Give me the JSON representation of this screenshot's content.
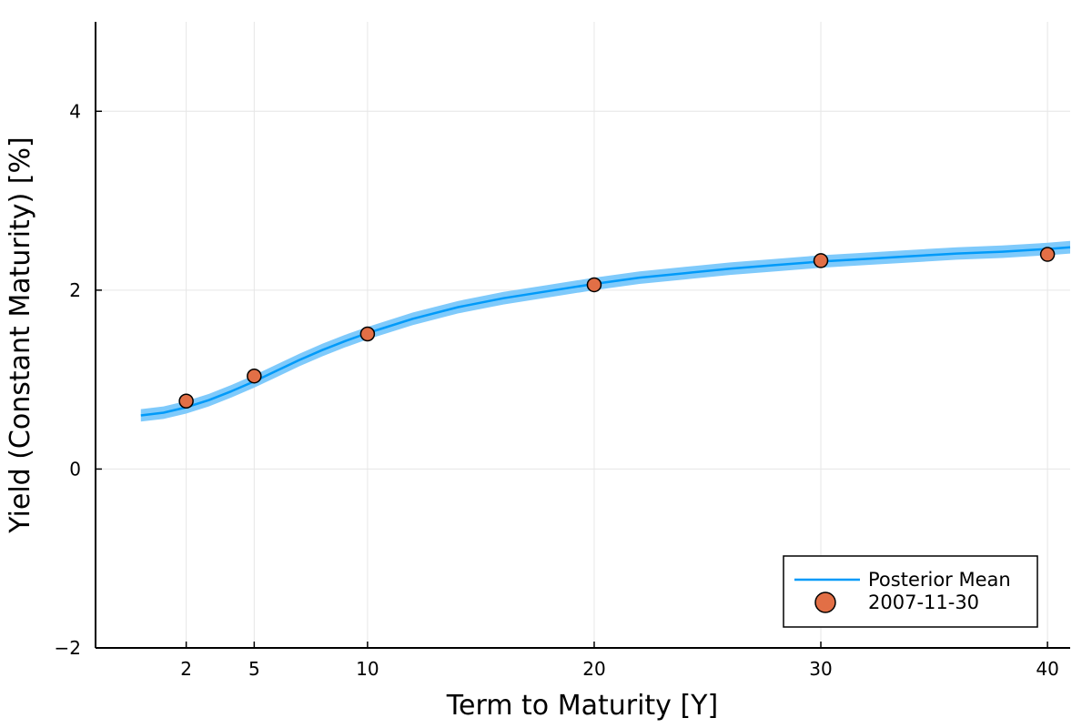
{
  "chart_data": {
    "type": "line",
    "title": "",
    "xlabel": "Term to Maturity [Y]",
    "ylabel": "Yield (Constant Maturity) [%]",
    "xlim": [
      -2,
      41
    ],
    "ylim": [
      -2,
      5
    ],
    "xticks": [
      2,
      5,
      10,
      20,
      30,
      40
    ],
    "xtick_labels": [
      "2",
      "5",
      "10",
      "20",
      "30",
      "40"
    ],
    "yticks": [
      -2,
      0,
      2,
      4
    ],
    "ytick_labels": [
      "−2",
      "0",
      "2",
      "4"
    ],
    "grid": true,
    "legend_position": "bottom-right",
    "series": [
      {
        "name": "Posterior Mean",
        "kind": "line",
        "color": "#009af9",
        "band_color": "#7fcafb",
        "x": [
          0,
          1,
          2,
          3,
          4,
          5,
          6,
          7,
          8,
          9,
          10,
          12,
          14,
          16,
          18,
          20,
          22,
          24,
          26,
          28,
          30,
          32,
          34,
          36,
          38,
          40,
          41
        ],
        "y": [
          0.6,
          0.63,
          0.69,
          0.77,
          0.87,
          0.98,
          1.1,
          1.22,
          1.33,
          1.43,
          1.52,
          1.68,
          1.81,
          1.91,
          1.99,
          2.07,
          2.14,
          2.19,
          2.24,
          2.28,
          2.32,
          2.35,
          2.38,
          2.41,
          2.43,
          2.46,
          2.48
        ],
        "band_halfwidth": 0.07
      },
      {
        "name": "2007-11-30",
        "kind": "scatter",
        "color": "#e26f46",
        "x": [
          2,
          5,
          10,
          20,
          30,
          40
        ],
        "y": [
          0.76,
          1.04,
          1.51,
          2.06,
          2.33,
          2.4
        ]
      }
    ]
  }
}
